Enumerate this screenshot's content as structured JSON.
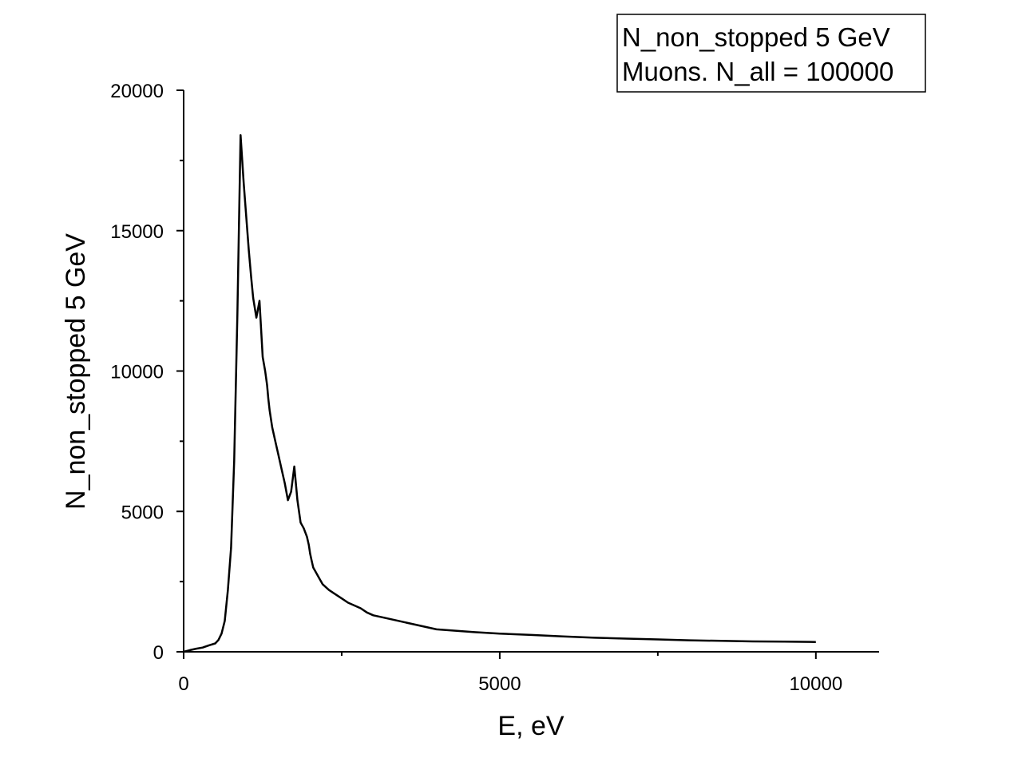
{
  "chart_data": {
    "type": "line",
    "xlabel": "E, eV",
    "ylabel": "N_non_stopped 5 GeV",
    "xlim": [
      0,
      11000
    ],
    "ylim": [
      0,
      20000
    ],
    "x_ticks": [
      0,
      5000,
      10000
    ],
    "x_minor_ticks": [
      2500,
      7500
    ],
    "y_ticks": [
      0,
      5000,
      10000,
      15000,
      20000
    ],
    "y_minor_ticks": [
      2500,
      7500,
      12500,
      17500
    ],
    "tick_labels_x": [
      "0",
      "5000",
      "10000"
    ],
    "tick_labels_y": [
      "0",
      "5000",
      "10000",
      "15000",
      "20000"
    ],
    "legend": {
      "lines": [
        "N_non_stopped 5 GeV",
        "Muons. N_all = 100000"
      ],
      "placement": "top-right"
    },
    "grid": false,
    "line_color": "#000000",
    "series": [
      {
        "x": [
          0,
          100,
          200,
          300,
          400,
          500,
          550,
          600,
          650,
          700,
          750,
          800,
          850,
          900,
          950,
          980,
          1000,
          1030,
          1070,
          1100,
          1150,
          1200,
          1250,
          1290,
          1320,
          1340,
          1360,
          1400,
          1450,
          1500,
          1550,
          1600,
          1650,
          1700,
          1750,
          1800,
          1850,
          1900,
          1950,
          1980,
          2000,
          2020,
          2050,
          2100,
          2150,
          2200,
          2300,
          2400,
          2500,
          2600,
          2700,
          2800,
          2900,
          3000,
          3200,
          3400,
          3600,
          3800,
          4000,
          4300,
          4600,
          5000,
          5500,
          6000,
          6500,
          7000,
          7500,
          8000,
          8500,
          9000,
          9500,
          10000
        ],
        "values": [
          0,
          60,
          110,
          150,
          230,
          300,
          420,
          650,
          1100,
          2200,
          3700,
          6800,
          12000,
          18400,
          16700,
          15800,
          15200,
          14300,
          13300,
          12600,
          11900,
          12500,
          10500,
          10000,
          9500,
          9000,
          8600,
          8000,
          7500,
          7000,
          6500,
          6000,
          5400,
          5700,
          6600,
          5400,
          4600,
          4400,
          4100,
          3800,
          3500,
          3300,
          3000,
          2800,
          2600,
          2400,
          2200,
          2050,
          1900,
          1750,
          1650,
          1550,
          1400,
          1300,
          1200,
          1100,
          1000,
          900,
          800,
          750,
          700,
          650,
          600,
          550,
          500,
          470,
          440,
          410,
          390,
          370,
          360,
          350
        ]
      }
    ]
  }
}
